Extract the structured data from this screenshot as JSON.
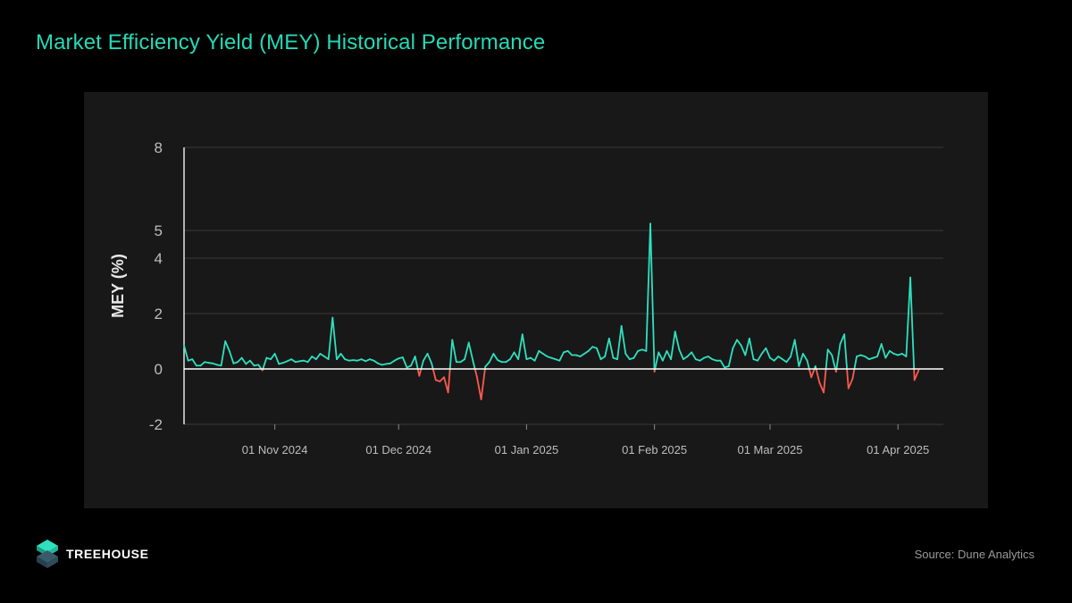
{
  "title": "Market Efficiency Yield (MEY) Historical Performance",
  "brand": {
    "name": "TREEHOUSE",
    "logo_icon": "treehouse-logo-icon"
  },
  "source": "Source: Dune Analytics",
  "colors": {
    "title": "#26d9b7",
    "positive": "#2fe0bf",
    "negative": "#ff5a4e",
    "panel": "#181818",
    "background": "#000000"
  },
  "chart_data": {
    "type": "line",
    "title": "",
    "xlabel": "",
    "ylabel": "MEY (%)",
    "ylim": [
      -2,
      8
    ],
    "yticks": [
      -2,
      0,
      2,
      4,
      5,
      8
    ],
    "ytick_labels": [
      "-2",
      "0",
      "2",
      "4",
      "5",
      "8"
    ],
    "xtick_labels": [
      "01 Nov 2024",
      "01 Dec 2024",
      "01 Jan 2025",
      "01 Feb 2025",
      "01 Mar 2025",
      "01 Apr 2025"
    ],
    "xlim": [
      "2024-10-10",
      "2025-04-12"
    ],
    "grid": true,
    "legend": "none",
    "series": [
      {
        "values": [
          [
            "2024-10-10",
            0.85
          ],
          [
            "2024-10-11",
            0.3
          ],
          [
            "2024-10-12",
            0.35
          ],
          [
            "2024-10-13",
            0.12
          ],
          [
            "2024-10-14",
            0.12
          ],
          [
            "2024-10-15",
            0.25
          ],
          [
            "2024-10-16",
            0.22
          ],
          [
            "2024-10-17",
            0.2
          ],
          [
            "2024-10-18",
            0.15
          ],
          [
            "2024-10-19",
            0.12
          ],
          [
            "2024-10-20",
            1.0
          ],
          [
            "2024-10-21",
            0.65
          ],
          [
            "2024-10-22",
            0.2
          ],
          [
            "2024-10-23",
            0.25
          ],
          [
            "2024-10-24",
            0.4
          ],
          [
            "2024-10-25",
            0.18
          ],
          [
            "2024-10-26",
            0.3
          ],
          [
            "2024-10-27",
            0.12
          ],
          [
            "2024-10-28",
            0.15
          ],
          [
            "2024-10-29",
            -0.05
          ],
          [
            "2024-10-30",
            0.4
          ],
          [
            "2024-10-31",
            0.35
          ],
          [
            "2024-11-01",
            0.55
          ],
          [
            "2024-11-02",
            0.18
          ],
          [
            "2024-11-03",
            0.22
          ],
          [
            "2024-11-04",
            0.28
          ],
          [
            "2024-11-05",
            0.35
          ],
          [
            "2024-11-06",
            0.25
          ],
          [
            "2024-11-07",
            0.28
          ],
          [
            "2024-11-08",
            0.3
          ],
          [
            "2024-11-09",
            0.25
          ],
          [
            "2024-11-10",
            0.45
          ],
          [
            "2024-11-11",
            0.35
          ],
          [
            "2024-11-12",
            0.55
          ],
          [
            "2024-11-13",
            0.45
          ],
          [
            "2024-11-14",
            0.35
          ],
          [
            "2024-11-15",
            1.85
          ],
          [
            "2024-11-16",
            0.35
          ],
          [
            "2024-11-17",
            0.55
          ],
          [
            "2024-11-18",
            0.35
          ],
          [
            "2024-11-19",
            0.3
          ],
          [
            "2024-11-20",
            0.32
          ],
          [
            "2024-11-21",
            0.3
          ],
          [
            "2024-11-22",
            0.35
          ],
          [
            "2024-11-23",
            0.28
          ],
          [
            "2024-11-24",
            0.35
          ],
          [
            "2024-11-25",
            0.3
          ],
          [
            "2024-11-26",
            0.2
          ],
          [
            "2024-11-27",
            0.15
          ],
          [
            "2024-11-28",
            0.18
          ],
          [
            "2024-11-29",
            0.2
          ],
          [
            "2024-11-30",
            0.3
          ],
          [
            "2024-12-01",
            0.38
          ],
          [
            "2024-12-02",
            0.42
          ],
          [
            "2024-12-03",
            0.05
          ],
          [
            "2024-12-04",
            0.12
          ],
          [
            "2024-12-05",
            0.45
          ],
          [
            "2024-12-06",
            -0.25
          ],
          [
            "2024-12-07",
            0.3
          ],
          [
            "2024-12-08",
            0.55
          ],
          [
            "2024-12-09",
            0.2
          ],
          [
            "2024-12-10",
            -0.4
          ],
          [
            "2024-12-11",
            -0.45
          ],
          [
            "2024-12-12",
            -0.3
          ],
          [
            "2024-12-13",
            -0.85
          ],
          [
            "2024-12-14",
            1.05
          ],
          [
            "2024-12-15",
            0.25
          ],
          [
            "2024-12-16",
            0.25
          ],
          [
            "2024-12-17",
            0.35
          ],
          [
            "2024-12-18",
            0.95
          ],
          [
            "2024-12-19",
            0.3
          ],
          [
            "2024-12-20",
            -0.3
          ],
          [
            "2024-12-21",
            -1.1
          ],
          [
            "2024-12-22",
            0.08
          ],
          [
            "2024-12-23",
            0.25
          ],
          [
            "2024-12-24",
            0.55
          ],
          [
            "2024-12-25",
            0.32
          ],
          [
            "2024-12-26",
            0.25
          ],
          [
            "2024-12-27",
            0.25
          ],
          [
            "2024-12-28",
            0.35
          ],
          [
            "2024-12-29",
            0.6
          ],
          [
            "2024-12-30",
            0.35
          ],
          [
            "2024-12-31",
            1.25
          ],
          [
            "2025-01-01",
            0.35
          ],
          [
            "2025-01-02",
            0.4
          ],
          [
            "2025-01-03",
            0.3
          ],
          [
            "2025-01-04",
            0.65
          ],
          [
            "2025-01-05",
            0.55
          ],
          [
            "2025-01-06",
            0.45
          ],
          [
            "2025-01-07",
            0.4
          ],
          [
            "2025-01-08",
            0.35
          ],
          [
            "2025-01-09",
            0.3
          ],
          [
            "2025-01-10",
            0.6
          ],
          [
            "2025-01-11",
            0.65
          ],
          [
            "2025-01-12",
            0.5
          ],
          [
            "2025-01-13",
            0.5
          ],
          [
            "2025-01-14",
            0.45
          ],
          [
            "2025-01-15",
            0.55
          ],
          [
            "2025-01-16",
            0.65
          ],
          [
            "2025-01-17",
            0.8
          ],
          [
            "2025-01-18",
            0.75
          ],
          [
            "2025-01-19",
            0.35
          ],
          [
            "2025-01-20",
            0.45
          ],
          [
            "2025-01-21",
            1.1
          ],
          [
            "2025-01-22",
            0.4
          ],
          [
            "2025-01-23",
            0.35
          ],
          [
            "2025-01-24",
            1.55
          ],
          [
            "2025-01-25",
            0.55
          ],
          [
            "2025-01-26",
            0.35
          ],
          [
            "2025-01-27",
            0.4
          ],
          [
            "2025-01-28",
            0.65
          ],
          [
            "2025-01-29",
            0.7
          ],
          [
            "2025-01-30",
            0.65
          ],
          [
            "2025-01-31",
            5.25
          ],
          [
            "2025-02-01",
            -0.1
          ],
          [
            "2025-02-02",
            0.6
          ],
          [
            "2025-02-03",
            0.3
          ],
          [
            "2025-02-04",
            0.65
          ],
          [
            "2025-02-05",
            0.35
          ],
          [
            "2025-02-06",
            1.35
          ],
          [
            "2025-02-07",
            0.7
          ],
          [
            "2025-02-08",
            0.35
          ],
          [
            "2025-02-09",
            0.45
          ],
          [
            "2025-02-10",
            0.6
          ],
          [
            "2025-02-11",
            0.35
          ],
          [
            "2025-02-12",
            0.3
          ],
          [
            "2025-02-13",
            0.4
          ],
          [
            "2025-02-14",
            0.45
          ],
          [
            "2025-02-15",
            0.35
          ],
          [
            "2025-02-16",
            0.3
          ],
          [
            "2025-02-17",
            0.3
          ],
          [
            "2025-02-18",
            0.05
          ],
          [
            "2025-02-19",
            0.1
          ],
          [
            "2025-02-20",
            0.75
          ],
          [
            "2025-02-21",
            1.05
          ],
          [
            "2025-02-22",
            0.85
          ],
          [
            "2025-02-23",
            0.5
          ],
          [
            "2025-02-24",
            1.1
          ],
          [
            "2025-02-25",
            0.35
          ],
          [
            "2025-02-26",
            0.3
          ],
          [
            "2025-02-27",
            0.55
          ],
          [
            "2025-02-28",
            0.75
          ],
          [
            "2025-03-01",
            0.4
          ],
          [
            "2025-03-02",
            0.3
          ],
          [
            "2025-03-03",
            0.45
          ],
          [
            "2025-03-04",
            0.35
          ],
          [
            "2025-03-05",
            0.25
          ],
          [
            "2025-03-06",
            0.45
          ],
          [
            "2025-03-07",
            1.05
          ],
          [
            "2025-03-08",
            0.1
          ],
          [
            "2025-03-09",
            0.55
          ],
          [
            "2025-03-10",
            0.3
          ],
          [
            "2025-03-11",
            -0.3
          ],
          [
            "2025-03-12",
            0.1
          ],
          [
            "2025-03-13",
            -0.5
          ],
          [
            "2025-03-14",
            -0.85
          ],
          [
            "2025-03-15",
            0.7
          ],
          [
            "2025-03-16",
            0.5
          ],
          [
            "2025-03-17",
            -0.1
          ],
          [
            "2025-03-18",
            0.9
          ],
          [
            "2025-03-19",
            1.25
          ],
          [
            "2025-03-20",
            -0.7
          ],
          [
            "2025-03-21",
            -0.35
          ],
          [
            "2025-03-22",
            0.45
          ],
          [
            "2025-03-23",
            0.5
          ],
          [
            "2025-03-24",
            0.45
          ],
          [
            "2025-03-25",
            0.35
          ],
          [
            "2025-03-26",
            0.4
          ],
          [
            "2025-03-27",
            0.45
          ],
          [
            "2025-03-28",
            0.9
          ],
          [
            "2025-03-29",
            0.4
          ],
          [
            "2025-03-30",
            0.65
          ],
          [
            "2025-03-31",
            0.55
          ],
          [
            "2025-04-01",
            0.5
          ],
          [
            "2025-04-02",
            0.55
          ],
          [
            "2025-04-03",
            0.45
          ],
          [
            "2025-04-04",
            3.3
          ],
          [
            "2025-04-05",
            -0.4
          ],
          [
            "2025-04-06",
            -0.05
          ]
        ]
      }
    ]
  }
}
